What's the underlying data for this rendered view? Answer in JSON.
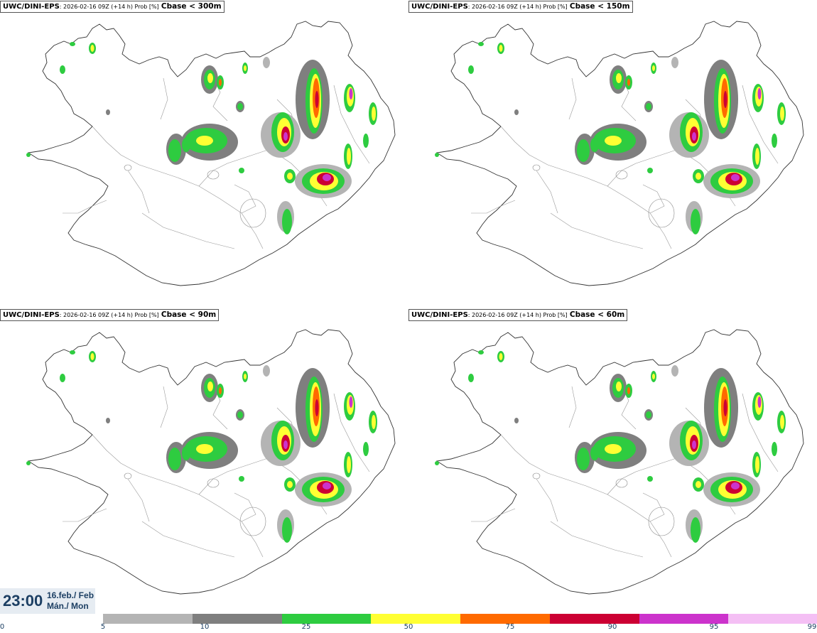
{
  "panels": [
    {
      "model": "UWC/DINI-EPS",
      "run": ": 2026-02-16 09Z (+14 h) Prob [%]",
      "variable": "Cbase < 300m"
    },
    {
      "model": "UWC/DINI-EPS",
      "run": ": 2026-02-16 09Z (+14 h) Prob [%]",
      "variable": "Cbase < 150m"
    },
    {
      "model": "UWC/DINI-EPS",
      "run": ": 2026-02-16 09Z (+14 h) Prob [%]",
      "variable": "Cbase < 90m"
    },
    {
      "model": "UWC/DINI-EPS",
      "run": ": 2026-02-16 09Z (+14 h) Prob [%]",
      "variable": "Cbase < 60m"
    }
  ],
  "valid_time": {
    "time": "23:00",
    "date_line1": "16.feb./ Feb",
    "date_line2": "Mán./ Mon"
  },
  "colorbar": {
    "ticks": [
      "0",
      "5",
      "10",
      "25",
      "50",
      "75",
      "90",
      "95",
      "99"
    ],
    "colors": [
      "#b4b4b4",
      "#7f7f7f",
      "#2ecc40",
      "#ffff33",
      "#ff6a00",
      "#cc0033",
      "#cc33cc",
      "#f4bff4"
    ]
  }
}
